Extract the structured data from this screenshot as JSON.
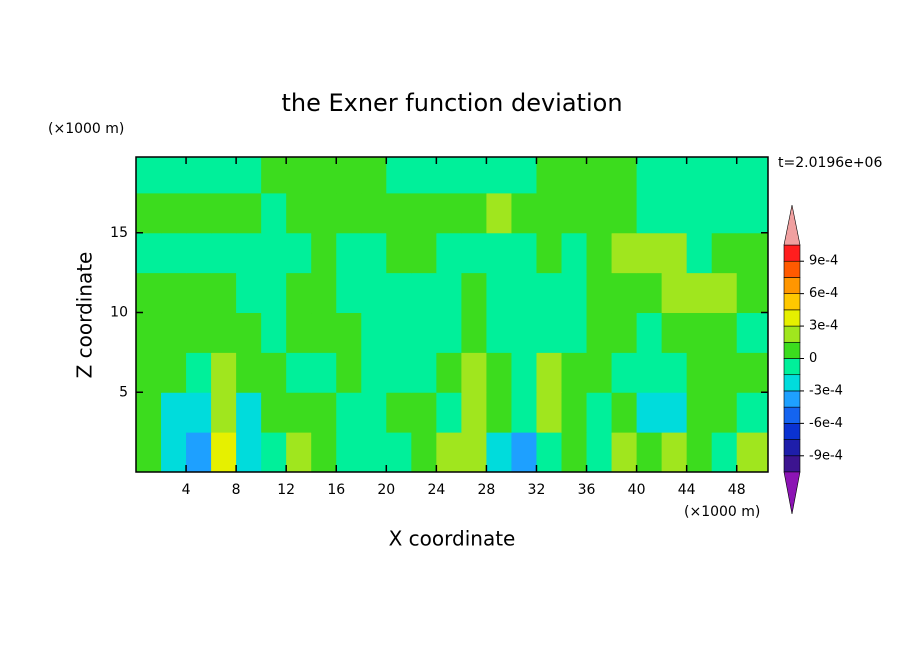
{
  "chart_data": {
    "type": "contour",
    "title": "the Exner function deviation",
    "x_label": "X coordinate",
    "y_label": "Z coordinate",
    "x_unit": "(×1000 m)",
    "y_unit": "(×1000 m)",
    "annotation": "t=2.0196e+06",
    "xlim": [
      0,
      50.5
    ],
    "ylim": [
      0,
      19.75
    ],
    "xticks": [
      4,
      8,
      12,
      16,
      20,
      24,
      28,
      32,
      36,
      40,
      44,
      48
    ],
    "yticks": [
      5,
      10,
      15
    ],
    "x": [
      1,
      3,
      5,
      7,
      9,
      11,
      13,
      15,
      17,
      19,
      21,
      23,
      25,
      27,
      29,
      31,
      33,
      35,
      37,
      39,
      41,
      43,
      45,
      47,
      49
    ],
    "y": [
      1.25,
      3.75,
      6.25,
      8.75,
      11.25,
      13.75,
      16.25,
      18.75
    ],
    "z": [
      [
        0.0001,
        -0.0002,
        -0.0004,
        0.0003,
        -0.0002,
        -0.0001,
        0.0002,
        0.0001,
        -0.0001,
        -0.0001,
        -0.0001,
        0.0001,
        0.0002,
        0.0002,
        -0.0002,
        -0.0004,
        -0.0001,
        0.0001,
        -0.0001,
        0.0002,
        0.0001,
        0.0002,
        0.0001,
        -0.0001,
        0.0002
      ],
      [
        0.0001,
        -0.0002,
        -0.0002,
        0.0002,
        -0.0002,
        0.0001,
        0.0001,
        0.0001,
        -0.0001,
        -0.0001,
        0.0001,
        0.0001,
        -0.0001,
        0.0002,
        0.0001,
        -0.0001,
        0.0002,
        0.0001,
        -0.0001,
        0.0001,
        -0.0002,
        -0.0002,
        0.0001,
        0.0001,
        -0.0001
      ],
      [
        0.0001,
        0.0001,
        -0.0001,
        0.0002,
        0.0001,
        0.0001,
        -0.0001,
        -0.0001,
        0.0001,
        -0.0001,
        -0.0001,
        -0.0001,
        0.0001,
        0.0002,
        0.0001,
        -0.0001,
        0.0002,
        0.0001,
        0.0001,
        -0.0001,
        -0.0001,
        -0.0001,
        0.0001,
        0.0001,
        0.0001
      ],
      [
        0.0001,
        0.0001,
        0.0001,
        0.0001,
        0.0001,
        -0.0001,
        0.0001,
        0.0001,
        0.0001,
        -0.0001,
        -0.0001,
        -0.0001,
        -0.0001,
        0.0001,
        -0.0001,
        -0.0001,
        -0.0001,
        -0.0001,
        0.0001,
        0.0001,
        -0.0001,
        0.0001,
        0.0001,
        0.0001,
        -0.0001
      ],
      [
        0.0001,
        0.0001,
        0.0001,
        0.0001,
        -0.0001,
        -0.0001,
        0.0001,
        0.0001,
        -0.0001,
        -0.0001,
        -0.0001,
        -0.0001,
        -0.0001,
        0.0001,
        -0.0001,
        -0.0001,
        -0.0001,
        -0.0001,
        0.0001,
        0.0001,
        0.0001,
        0.0002,
        0.0002,
        0.0002,
        0.0001
      ],
      [
        -0.0001,
        -0.0001,
        -0.0001,
        -0.0001,
        -0.0001,
        -0.0001,
        -0.0001,
        0.0001,
        -0.0001,
        -0.0001,
        0.0001,
        0.0001,
        -0.0001,
        -0.0001,
        -0.0001,
        -0.0001,
        0.0001,
        -0.0001,
        0.0001,
        0.0002,
        0.0002,
        0.0002,
        -0.0001,
        0.0001,
        0.0001
      ],
      [
        0.0001,
        0.0001,
        0.0001,
        0.0001,
        0.0001,
        -0.0001,
        0.0001,
        0.0001,
        0.0001,
        0.0001,
        0.0001,
        0.0001,
        0.0001,
        0.0001,
        0.0002,
        0.0001,
        0.0001,
        0.0001,
        0.0001,
        0.0001,
        -0.0001,
        -0.0001,
        -0.0001,
        -0.0001,
        -0.0001
      ],
      [
        -0.0001,
        -0.0001,
        -0.0001,
        -0.0001,
        -0.0001,
        0.0001,
        0.0001,
        0.0001,
        0.0001,
        0.0001,
        -0.0001,
        -0.0001,
        -0.0001,
        -0.0001,
        -0.0001,
        -0.0001,
        0.0001,
        0.0001,
        0.0001,
        0.0001,
        -0.0001,
        -0.0001,
        -0.0001,
        -0.0001,
        -0.0001
      ]
    ],
    "levels": [
      -0.00105,
      -0.0009,
      -0.00075,
      -0.0006,
      -0.00045,
      -0.0003,
      -0.00015,
      0,
      0.00015,
      0.0003,
      0.00045,
      0.0006,
      0.00075,
      0.0009,
      0.00105
    ],
    "colors": [
      "#3c1490",
      "#1e1eaa",
      "#0a32d2",
      "#1464f0",
      "#1ea0ff",
      "#00dcdc",
      "#00f09a",
      "#3cdc1e",
      "#a0e61e",
      "#e6f000",
      "#ffc800",
      "#ff9600",
      "#ff5a00",
      "#ff1e1e"
    ],
    "extend_colors": [
      "#8c14b4",
      "#f0a0a0"
    ],
    "colorbar_ticks": [
      {
        "value": -0.0009,
        "label": "-9e-4"
      },
      {
        "value": -0.0006,
        "label": "-6e-4"
      },
      {
        "value": -0.0003,
        "label": "-3e-4"
      },
      0,
      {
        "value": 0.0003,
        "label": "3e-4"
      },
      {
        "value": 0.0006,
        "label": "6e-4"
      },
      {
        "value": 0.0009,
        "label": "9e-4"
      }
    ]
  }
}
